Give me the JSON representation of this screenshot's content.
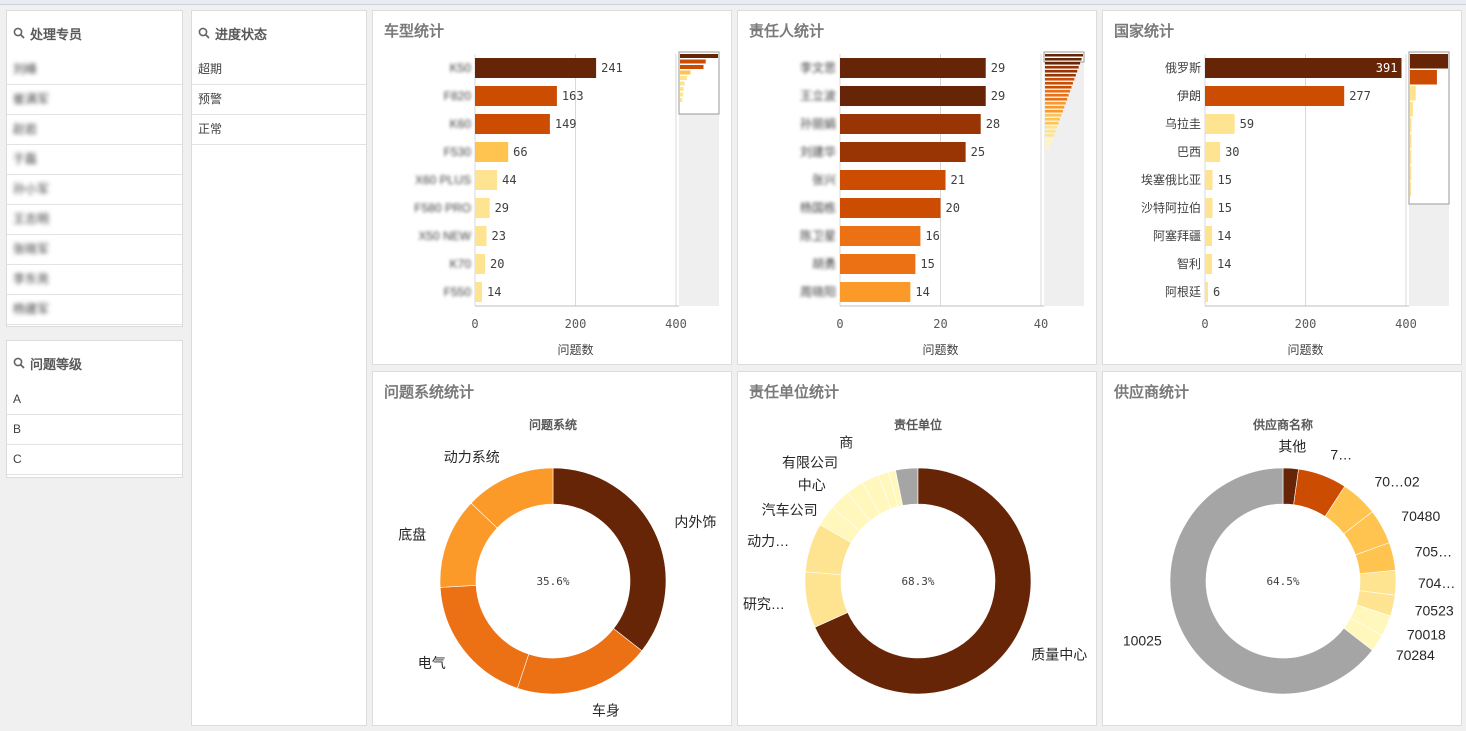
{
  "colors": {
    "dark": "#662506",
    "brown": "#993404",
    "rust": "#cc4c02",
    "orange": "#ec7014",
    "orange_light": "#fb9a29",
    "amber": "#fec44f",
    "cream": "#fee391",
    "pale": "#fff7bc",
    "gray": "#a5a5a5"
  },
  "filters": {
    "handler": {
      "title": "处理专员",
      "items": [
        "刘峰",
        "崔满军",
        "赵岩",
        "于磊",
        "孙小军",
        "王志明",
        "张晓军",
        "李东亮",
        "杨建军"
      ]
    },
    "level": {
      "title": "问题等级",
      "items": [
        "A",
        "B",
        "C"
      ]
    },
    "status": {
      "title": "进度状态",
      "items": [
        "超期",
        "预警",
        "正常"
      ]
    }
  },
  "cards": {
    "model": "车型统计",
    "owner": "责任人统计",
    "country": "国家统计",
    "system": "问题系统统计",
    "unit": "责任单位统计",
    "supplier": "供应商统计"
  },
  "chart_data": [
    {
      "type": "bar",
      "orientation": "horizontal",
      "title": "车型统计",
      "categories": [
        "K50",
        "F820",
        "K60",
        "F530",
        "X60 PLUS",
        "F580 PRO",
        "X50 NEW",
        "K70",
        "F550"
      ],
      "values": [
        241,
        163,
        149,
        66,
        44,
        29,
        23,
        20,
        14
      ],
      "xlabel": "问题数",
      "xlim": [
        0,
        400
      ],
      "xticks": [
        0,
        200,
        400
      ],
      "xtick_labels": [
        "0",
        "200",
        "400"
      ],
      "grid": true
    },
    {
      "type": "bar",
      "orientation": "horizontal",
      "title": "责任人统计",
      "categories": [
        "李文思",
        "王立波",
        "孙丽娟",
        "刘建华",
        "张兴",
        "杨国栋",
        "陈卫星",
        "胡勇",
        "周晓阳"
      ],
      "values": [
        29,
        29,
        28,
        25,
        21,
        20,
        16,
        15,
        14
      ],
      "xlabel": "问题数",
      "xlim": [
        0,
        40
      ],
      "xticks": [
        0,
        20,
        40
      ],
      "xtick_labels": [
        "0",
        "20",
        "40"
      ],
      "grid": true
    },
    {
      "type": "bar",
      "orientation": "horizontal",
      "title": "国家统计",
      "categories": [
        "俄罗斯",
        "伊朗",
        "乌拉圭",
        "巴西",
        "埃塞俄比亚",
        "沙特阿拉伯",
        "阿塞拜疆",
        "智利",
        "阿根廷"
      ],
      "values": [
        391,
        277,
        59,
        30,
        15,
        15,
        14,
        14,
        6
      ],
      "xlabel": "问题数",
      "xlim": [
        0,
        400
      ],
      "xticks": [
        0,
        200,
        400
      ],
      "xtick_labels": [
        "0",
        "200",
        "400"
      ],
      "grid": true
    },
    {
      "type": "pie",
      "donut": true,
      "title": "问题系统",
      "labels": [
        "内外饰",
        "车身",
        "电气",
        "底盘",
        "动力系统"
      ],
      "values": [
        35.6,
        19.5,
        19.0,
        13.0,
        12.9
      ],
      "center_label": "35.6%"
    },
    {
      "type": "pie",
      "donut": true,
      "title": "责任单位",
      "labels": [
        "质量中心",
        "研究…",
        "动力…",
        "汽车公司",
        "中心",
        "有限公司",
        "商",
        "",
        "",
        ""
      ],
      "values": [
        68.3,
        8.0,
        7.0,
        3.0,
        3.0,
        2.5,
        2.5,
        1.5,
        1.0,
        3.2
      ],
      "center_label": "68.3%"
    },
    {
      "type": "pie",
      "donut": true,
      "title": "供应商名称",
      "labels": [
        "10025",
        "其他",
        "70284",
        "70018",
        "70523",
        "704…",
        "705…",
        "70480",
        "70…02",
        "7…"
      ],
      "values": [
        64.5,
        2.2,
        2.5,
        3.0,
        3.0,
        3.5,
        4.0,
        5.0,
        5.3,
        7.0
      ],
      "center_label": "64.5%"
    }
  ]
}
